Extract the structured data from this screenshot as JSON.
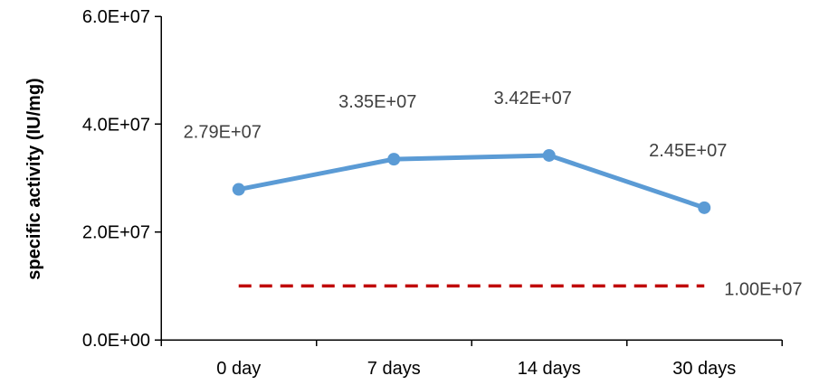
{
  "chart_data": {
    "type": "line",
    "categories": [
      "0 day",
      "7 days",
      "14 days",
      "30 days"
    ],
    "series": [
      {
        "values": [
          27900000,
          33500000,
          34200000,
          24500000
        ],
        "color": "#5B9BD5",
        "data_labels": [
          "2.79E+07",
          "3.35E+07",
          "3.42E+07",
          "2.45E+07"
        ]
      }
    ],
    "reference_line": {
      "value": 10000000,
      "label": "1.00E+07",
      "style": "dashed",
      "color": "#C00000"
    },
    "title": "",
    "xlabel": "",
    "ylabel": "specific activity (IU/mg)",
    "ylim": [
      0,
      60000000
    ],
    "y_ticks": [
      0,
      20000000,
      40000000,
      60000000
    ],
    "y_tick_labels": [
      "0.0E+00",
      "2.0E+07",
      "4.0E+07",
      "6.0E+07"
    ],
    "grid": false,
    "legend": "none"
  }
}
